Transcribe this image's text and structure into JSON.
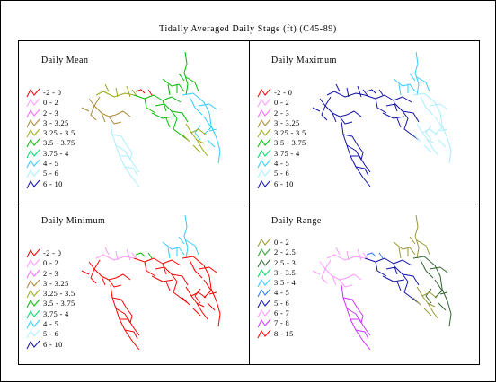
{
  "title": "Tidally Averaged Daily Stage (ft) (C45-89)",
  "panels": [
    {
      "id": "mean",
      "title": "Daily Mean",
      "legend": [
        {
          "label": "-2 - 0",
          "color": "#ff0000"
        },
        {
          "label": "0 - 2",
          "color": "#ff99ff"
        },
        {
          "label": "2 - 3",
          "color": "#ff66ff"
        },
        {
          "label": "3 - 3.25",
          "color": "#aa8833"
        },
        {
          "label": "3.25 - 3.5",
          "color": "#99aa11"
        },
        {
          "label": "3.5 - 3.75",
          "color": "#00bb00"
        },
        {
          "label": "3.75 - 4",
          "color": "#00dd66"
        },
        {
          "label": "4 - 5",
          "color": "#33ccff"
        },
        {
          "label": "5 - 6",
          "color": "#aaeeff"
        },
        {
          "label": "6 - 10",
          "color": "#1111aa"
        }
      ]
    },
    {
      "id": "maximum",
      "title": "Daily Maximum",
      "legend": [
        {
          "label": "-2 - 0",
          "color": "#ff0000"
        },
        {
          "label": "0 - 2",
          "color": "#ff99ff"
        },
        {
          "label": "2 - 3",
          "color": "#ff66ff"
        },
        {
          "label": "3 - 3.25",
          "color": "#aa8833"
        },
        {
          "label": "3.25 - 3.5",
          "color": "#99aa11"
        },
        {
          "label": "3.5 - 3.75",
          "color": "#00bb00"
        },
        {
          "label": "3.75 - 4",
          "color": "#00dd66"
        },
        {
          "label": "4 - 5",
          "color": "#33ccff"
        },
        {
          "label": "5 - 6",
          "color": "#aaeeff"
        },
        {
          "label": "6 - 10",
          "color": "#1111aa"
        }
      ]
    },
    {
      "id": "minimum",
      "title": "Daily Minimum",
      "legend": [
        {
          "label": "-2 - 0",
          "color": "#ff0000"
        },
        {
          "label": "0 - 2",
          "color": "#ff99ff"
        },
        {
          "label": "2 - 3",
          "color": "#ff66ff"
        },
        {
          "label": "3 - 3.25",
          "color": "#aa8833"
        },
        {
          "label": "3.25 - 3.5",
          "color": "#99aa11"
        },
        {
          "label": "3.5 - 3.75",
          "color": "#00bb00"
        },
        {
          "label": "3.75 - 4",
          "color": "#00dd66"
        },
        {
          "label": "4 - 5",
          "color": "#33ccff"
        },
        {
          "label": "5 - 6",
          "color": "#aaeeff"
        },
        {
          "label": "6 - 10",
          "color": "#1111aa"
        }
      ]
    },
    {
      "id": "range",
      "title": "Daily Range",
      "legend": [
        {
          "label": "0 - 2",
          "color": "#999933"
        },
        {
          "label": "2 - 2.5",
          "color": "#339933"
        },
        {
          "label": "2.5 - 3",
          "color": "#336633"
        },
        {
          "label": "3 - 3.5",
          "color": "#00dd66"
        },
        {
          "label": "3.5 - 4",
          "color": "#33ccff"
        },
        {
          "label": "4 - 5",
          "color": "#3377ff"
        },
        {
          "label": "5 - 6",
          "color": "#1111aa"
        },
        {
          "label": "6 - 7",
          "color": "#ff99ff"
        },
        {
          "label": "7 - 8",
          "color": "#cc33ff"
        },
        {
          "label": "8 - 15",
          "color": "#ff0000"
        }
      ]
    }
  ],
  "maps": {
    "mean": {
      "northeast": "#00bb00",
      "east": "#33ccff",
      "center": "#99aa11",
      "center_east": "#00bb00",
      "west": "#aa8833",
      "south": "#aaeeff",
      "southeast": "#99aa11",
      "accent": "#ff0000"
    },
    "maximum": {
      "northeast": "#33ccff",
      "east": "#aaeeff",
      "center": "#1111aa",
      "center_east": "#1111aa",
      "west": "#1111aa",
      "south": "#1111aa",
      "southeast": "#aaeeff",
      "accent": "#1111aa"
    },
    "minimum": {
      "northeast": "#33ccff",
      "east": "#ff0000",
      "center": "#ff99ff",
      "center_east": "#ff0000",
      "west": "#ff0000",
      "south": "#ff0000",
      "southeast": "#ff0000",
      "accent": "#00bb00"
    },
    "range": {
      "northeast": "#999933",
      "east": "#336633",
      "center": "#ff99ff",
      "center_east": "#1111aa",
      "west": "#ff99ff",
      "south": "#cc33ff",
      "southeast": "#999933",
      "accent": "#3377ff"
    }
  }
}
